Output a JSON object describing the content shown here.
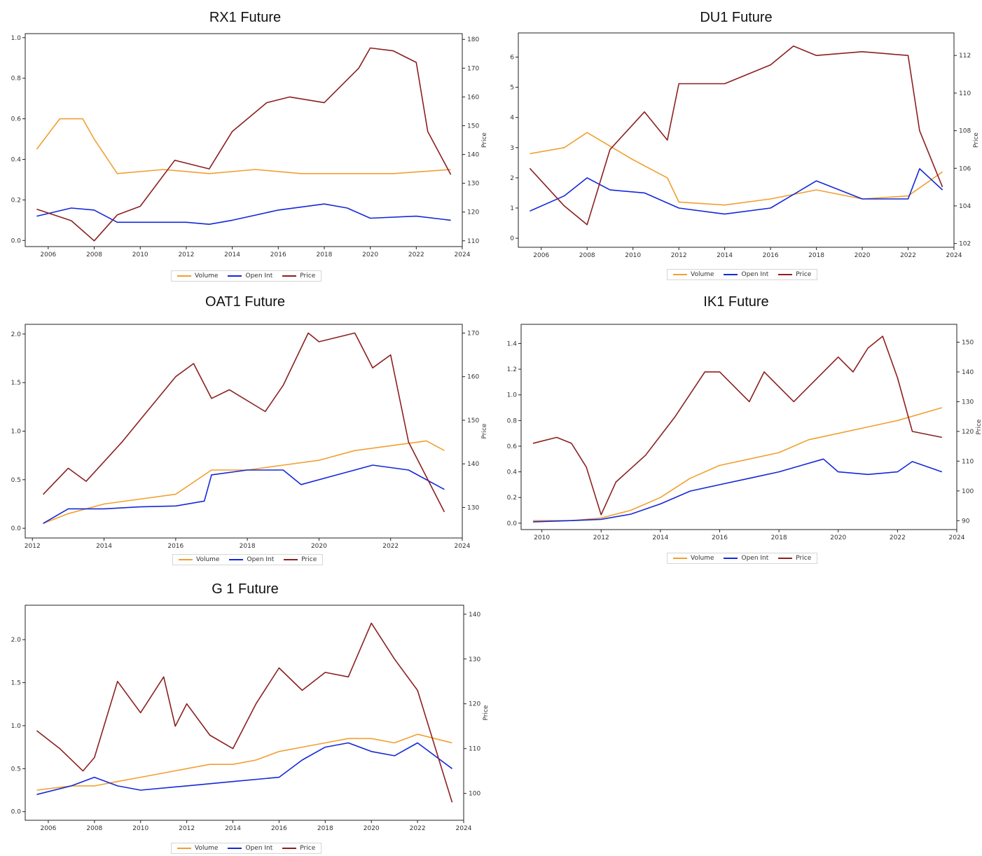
{
  "colors": {
    "volume": "#f0a030",
    "open_int": "#1428d8",
    "price": "#8b2020"
  },
  "chart_data": [
    {
      "type": "line",
      "title": "RX1 Future",
      "ylabel_right": "Price",
      "xlim": [
        2005,
        2024
      ],
      "x_ticks": [
        "2006",
        "2008",
        "2010",
        "2012",
        "2014",
        "2016",
        "2018",
        "2020",
        "2022",
        "2024"
      ],
      "y_left_range": [
        -0.03,
        1.02
      ],
      "y_left_ticks": [
        "0.0",
        "0.2",
        "0.4",
        "0.6",
        "0.8",
        "1.0"
      ],
      "y_right_range": [
        108,
        182
      ],
      "y_right_ticks": [
        "110",
        "120",
        "130",
        "140",
        "150",
        "160",
        "170",
        "180"
      ],
      "series": [
        {
          "name": "Volume",
          "axis": "left",
          "color": "#f0a030",
          "x": [
            2005.5,
            2006.5,
            2007.5,
            2008.0,
            2009.0,
            2011.0,
            2013.0,
            2015.0,
            2017.0,
            2019.0,
            2021.0,
            2023.5
          ],
          "values": [
            0.45,
            0.6,
            0.6,
            0.5,
            0.33,
            0.35,
            0.33,
            0.35,
            0.33,
            0.33,
            0.33,
            0.35
          ]
        },
        {
          "name": "Open Int",
          "axis": "left",
          "color": "#1428d8",
          "x": [
            2005.5,
            2007.0,
            2008.0,
            2009.0,
            2012.0,
            2013.0,
            2014.0,
            2016.0,
            2018.0,
            2019.0,
            2020.0,
            2022.0,
            2023.5
          ],
          "values": [
            0.12,
            0.16,
            0.15,
            0.09,
            0.09,
            0.08,
            0.1,
            0.15,
            0.18,
            0.16,
            0.11,
            0.12,
            0.1
          ]
        },
        {
          "name": "Price",
          "axis": "right",
          "color": "#8b2020",
          "x": [
            2005.5,
            2007.0,
            2008.0,
            2009.0,
            2010.0,
            2011.5,
            2013.0,
            2014.0,
            2015.5,
            2016.5,
            2018.0,
            2019.5,
            2020.0,
            2021.0,
            2022.0,
            2022.5,
            2023.5
          ],
          "values": [
            121,
            117,
            110,
            119,
            122,
            138,
            135,
            148,
            158,
            160,
            158,
            170,
            177,
            176,
            172,
            148,
            133
          ]
        }
      ]
    },
    {
      "type": "line",
      "title": "DU1 Future",
      "ylabel_right": "Price",
      "xlim": [
        2005,
        2024
      ],
      "x_ticks": [
        "2006",
        "2008",
        "2010",
        "2012",
        "2014",
        "2016",
        "2018",
        "2020",
        "2022",
        "2024"
      ],
      "y_left_range": [
        -0.3,
        6.8
      ],
      "y_left_ticks": [
        "0",
        "1",
        "2",
        "3",
        "4",
        "5",
        "6"
      ],
      "y_right_range": [
        101.8,
        113.2
      ],
      "y_right_ticks": [
        "102",
        "104",
        "106",
        "108",
        "110",
        "112"
      ],
      "series": [
        {
          "name": "Volume",
          "axis": "left",
          "color": "#f0a030",
          "x": [
            2005.5,
            2007.0,
            2008.0,
            2010.0,
            2011.5,
            2012.0,
            2014.0,
            2016.0,
            2018.0,
            2020.0,
            2022.0,
            2023.5
          ],
          "values": [
            2.8,
            3.0,
            3.5,
            2.6,
            2.0,
            1.2,
            1.1,
            1.3,
            1.6,
            1.3,
            1.4,
            2.2
          ]
        },
        {
          "name": "Open Int",
          "axis": "left",
          "color": "#1428d8",
          "x": [
            2005.5,
            2007.0,
            2008.0,
            2009.0,
            2010.5,
            2012.0,
            2014.0,
            2016.0,
            2018.0,
            2020.0,
            2022.0,
            2022.5,
            2023.5
          ],
          "values": [
            0.9,
            1.4,
            2.0,
            1.6,
            1.5,
            1.0,
            0.8,
            1.0,
            1.9,
            1.3,
            1.3,
            2.3,
            1.6
          ]
        },
        {
          "name": "Price",
          "axis": "right",
          "color": "#8b2020",
          "x": [
            2005.5,
            2007.0,
            2008.0,
            2009.0,
            2010.5,
            2011.5,
            2012.0,
            2014.0,
            2016.0,
            2017.0,
            2018.0,
            2020.0,
            2022.0,
            2022.5,
            2023.5
          ],
          "values": [
            106.0,
            104.0,
            103.0,
            107.0,
            109.0,
            107.5,
            110.5,
            110.5,
            111.5,
            112.5,
            112.0,
            112.2,
            112.0,
            108.0,
            105.0
          ]
        }
      ]
    },
    {
      "type": "line",
      "title": "OAT1 Future",
      "ylabel_right": "Price",
      "xlim": [
        2011.8,
        2024
      ],
      "x_ticks": [
        "2012",
        "2014",
        "2016",
        "2018",
        "2020",
        "2022",
        "2024"
      ],
      "y_left_range": [
        -0.1,
        2.1
      ],
      "y_left_ticks": [
        "0.0",
        "0.5",
        "1.0",
        "1.5",
        "2.0"
      ],
      "y_right_range": [
        123,
        172
      ],
      "y_right_ticks": [
        "130",
        "140",
        "150",
        "160",
        "170"
      ],
      "series": [
        {
          "name": "Volume",
          "axis": "left",
          "color": "#f0a030",
          "x": [
            2012.3,
            2013.0,
            2014.0,
            2015.0,
            2016.0,
            2017.0,
            2018.0,
            2019.0,
            2020.0,
            2021.0,
            2022.0,
            2023.0,
            2023.5
          ],
          "values": [
            0.05,
            0.15,
            0.25,
            0.3,
            0.35,
            0.6,
            0.6,
            0.65,
            0.7,
            0.8,
            0.85,
            0.9,
            0.8
          ]
        },
        {
          "name": "Open Int",
          "axis": "left",
          "color": "#1428d8",
          "x": [
            2012.3,
            2013.0,
            2014.0,
            2015.0,
            2016.0,
            2016.8,
            2017.0,
            2018.0,
            2019.0,
            2019.5,
            2020.5,
            2021.5,
            2022.5,
            2023.5
          ],
          "values": [
            0.05,
            0.2,
            0.2,
            0.22,
            0.23,
            0.28,
            0.55,
            0.6,
            0.6,
            0.45,
            0.55,
            0.65,
            0.6,
            0.4
          ]
        },
        {
          "name": "Price",
          "axis": "right",
          "color": "#8b2020",
          "x": [
            2012.3,
            2013.0,
            2013.5,
            2014.5,
            2015.0,
            2016.0,
            2016.5,
            2017.0,
            2017.5,
            2018.5,
            2019.0,
            2019.7,
            2020.0,
            2021.0,
            2021.5,
            2022.0,
            2022.5,
            2023.5
          ],
          "values": [
            133,
            139,
            136,
            145,
            150,
            160,
            163,
            155,
            157,
            152,
            158,
            170,
            168,
            170,
            162,
            165,
            145,
            129
          ]
        }
      ]
    },
    {
      "type": "line",
      "title": "IK1 Future",
      "ylabel_right": "Price",
      "xlim": [
        2009.3,
        2024
      ],
      "x_ticks": [
        "2010",
        "2012",
        "2014",
        "2016",
        "2018",
        "2020",
        "2022",
        "2024"
      ],
      "y_left_range": [
        -0.05,
        1.55
      ],
      "y_left_ticks": [
        "0.0",
        "0.2",
        "0.4",
        "0.6",
        "0.8",
        "1.0",
        "1.2",
        "1.4"
      ],
      "y_right_range": [
        87,
        156
      ],
      "y_right_ticks": [
        "90",
        "100",
        "110",
        "120",
        "130",
        "140",
        "150"
      ],
      "series": [
        {
          "name": "Volume",
          "axis": "left",
          "color": "#f0a030",
          "x": [
            2009.7,
            2011.0,
            2012.0,
            2013.0,
            2014.0,
            2015.0,
            2016.0,
            2017.0,
            2018.0,
            2019.0,
            2020.0,
            2021.0,
            2022.0,
            2023.5
          ],
          "values": [
            0.02,
            0.02,
            0.04,
            0.1,
            0.2,
            0.35,
            0.45,
            0.5,
            0.55,
            0.65,
            0.7,
            0.75,
            0.8,
            0.9
          ]
        },
        {
          "name": "Open Int",
          "axis": "left",
          "color": "#1428d8",
          "x": [
            2009.7,
            2011.0,
            2012.0,
            2013.0,
            2014.0,
            2015.0,
            2016.0,
            2017.0,
            2018.0,
            2019.5,
            2020.0,
            2021.0,
            2022.0,
            2022.5,
            2023.5
          ],
          "values": [
            0.01,
            0.02,
            0.03,
            0.07,
            0.15,
            0.25,
            0.3,
            0.35,
            0.4,
            0.5,
            0.4,
            0.38,
            0.4,
            0.48,
            0.4
          ]
        },
        {
          "name": "Price",
          "axis": "right",
          "color": "#8b2020",
          "x": [
            2009.7,
            2010.5,
            2011.0,
            2011.5,
            2012.0,
            2012.5,
            2013.5,
            2014.5,
            2015.5,
            2016.0,
            2017.0,
            2017.5,
            2018.5,
            2019.5,
            2020.0,
            2020.5,
            2021.0,
            2021.5,
            2022.0,
            2022.5,
            2023.5
          ],
          "values": [
            116,
            118,
            116,
            108,
            92,
            103,
            112,
            125,
            140,
            140,
            130,
            140,
            130,
            140,
            145,
            140,
            148,
            152,
            138,
            120,
            118
          ]
        }
      ]
    },
    {
      "type": "line",
      "title": "G 1 Future",
      "ylabel_right": "Price",
      "xlim": [
        2005,
        2024
      ],
      "x_ticks": [
        "2006",
        "2008",
        "2010",
        "2012",
        "2014",
        "2016",
        "2018",
        "2020",
        "2022",
        "2024"
      ],
      "y_left_range": [
        -0.1,
        2.4
      ],
      "y_left_ticks": [
        "0.0",
        "0.5",
        "1.0",
        "1.5",
        "2.0"
      ],
      "y_right_range": [
        94,
        142
      ],
      "y_right_ticks": [
        "100",
        "110",
        "120",
        "130",
        "140"
      ],
      "series": [
        {
          "name": "Volume",
          "axis": "left",
          "color": "#f0a030",
          "x": [
            2005.5,
            2007.0,
            2008.0,
            2009.0,
            2010.0,
            2011.0,
            2012.0,
            2013.0,
            2014.0,
            2015.0,
            2016.0,
            2017.0,
            2018.0,
            2019.0,
            2020.0,
            2021.0,
            2022.0,
            2023.5
          ],
          "values": [
            0.25,
            0.3,
            0.3,
            0.35,
            0.4,
            0.45,
            0.5,
            0.55,
            0.55,
            0.6,
            0.7,
            0.75,
            0.8,
            0.85,
            0.85,
            0.8,
            0.9,
            0.8
          ]
        },
        {
          "name": "Open Int",
          "axis": "left",
          "color": "#1428d8",
          "x": [
            2005.5,
            2007.0,
            2008.0,
            2009.0,
            2010.0,
            2012.0,
            2014.0,
            2016.0,
            2017.0,
            2018.0,
            2019.0,
            2020.0,
            2021.0,
            2022.0,
            2023.5
          ],
          "values": [
            0.2,
            0.3,
            0.4,
            0.3,
            0.25,
            0.3,
            0.35,
            0.4,
            0.6,
            0.75,
            0.8,
            0.7,
            0.65,
            0.8,
            0.5
          ]
        },
        {
          "name": "Price",
          "axis": "right",
          "color": "#8b2020",
          "x": [
            2005.5,
            2006.5,
            2007.5,
            2008.0,
            2009.0,
            2010.0,
            2011.0,
            2011.5,
            2012.0,
            2013.0,
            2014.0,
            2015.0,
            2016.0,
            2017.0,
            2018.0,
            2019.0,
            2020.0,
            2021.0,
            2022.0,
            2023.5
          ],
          "values": [
            114,
            110,
            105,
            108,
            125,
            118,
            126,
            115,
            120,
            113,
            110,
            120,
            128,
            123,
            127,
            126,
            138,
            130,
            123,
            98
          ]
        }
      ]
    }
  ]
}
